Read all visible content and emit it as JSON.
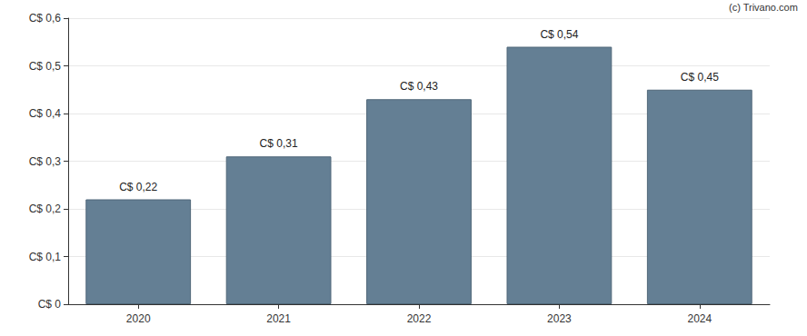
{
  "chart_data": {
    "type": "bar",
    "categories": [
      "2020",
      "2021",
      "2022",
      "2023",
      "2024"
    ],
    "values": [
      0.22,
      0.31,
      0.43,
      0.54,
      0.45
    ],
    "value_labels": [
      "C$ 0,22",
      "C$ 0,31",
      "C$ 0,43",
      "C$ 0,54",
      "C$ 0,45"
    ],
    "color": "#647f94",
    "ylim": [
      0,
      0.6
    ],
    "yticks": [
      {
        "value": 0,
        "label": "C$ 0"
      },
      {
        "value": 0.1,
        "label": "C$ 0,1"
      },
      {
        "value": 0.2,
        "label": "C$ 0,2"
      },
      {
        "value": 0.3,
        "label": "C$ 0,3"
      },
      {
        "value": 0.4,
        "label": "C$ 0,4"
      },
      {
        "value": 0.5,
        "label": "C$ 0,5"
      },
      {
        "value": 0.6,
        "label": "C$ 0,6"
      }
    ],
    "grid": true,
    "data_labels": true,
    "annotations": [
      "(c) Trivano.com"
    ]
  }
}
